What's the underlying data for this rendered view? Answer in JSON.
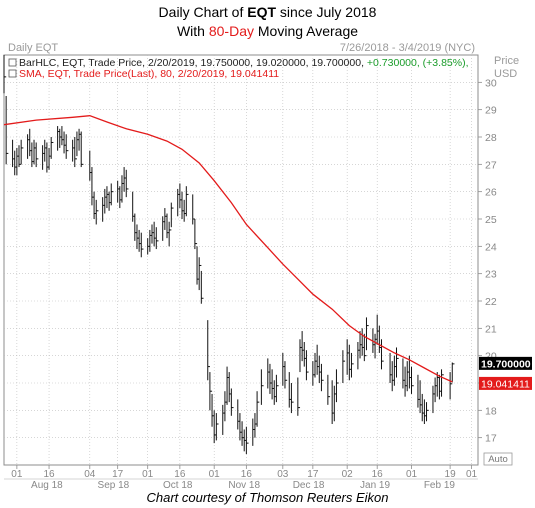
{
  "header": {
    "line1_prefix": "Daily Chart of ",
    "ticker": "EQT",
    "line1_suffix": " since July 2018",
    "line2_prefix": "With ",
    "line2_highlight": "80-Day",
    "line2_suffix": " Moving Average"
  },
  "panel": {
    "name": "Daily EQT",
    "range": "7/26/2018 - 3/4/2019 (NYC)",
    "price_label": "Price",
    "usd_label": "USD",
    "auto_label": "Auto",
    "legend_bar": "BarHLC, EQT, Trade Price, 2/20/2019, 19.750000, 19.020000, 19.700000, ",
    "legend_change": "+0.730000, (+3.85%),",
    "legend_sma": "SMA, EQT, Trade Price(Last), 80, 2/20/2019, 19.041411",
    "last_price_tag": "19.700000",
    "sma_tag": "19.041411"
  },
  "credit": "Chart courtesy of Thomson Reuters Eikon",
  "colors": {
    "bars": "#111111",
    "sma": "#e31b1b",
    "grid": "#bdbdbd",
    "axis_text": "#888888",
    "price_tag_bg": "#000000",
    "sma_tag_bg": "#e31b1b"
  },
  "chart_data": {
    "type": "ohlc",
    "title": "Daily Chart of EQT since July 2018",
    "ylim": [
      16,
      31
    ],
    "y_ticks": [
      17,
      18,
      19,
      20,
      21,
      22,
      23,
      24,
      25,
      26,
      27,
      28,
      29,
      30
    ],
    "x_day_ticks": [
      {
        "date": "2018-08-01",
        "label": "01"
      },
      {
        "date": "2018-08-16",
        "label": "16"
      },
      {
        "date": "2018-09-04",
        "label": "04"
      },
      {
        "date": "2018-09-17",
        "label": "17"
      },
      {
        "date": "2018-10-01",
        "label": "01"
      },
      {
        "date": "2018-10-16",
        "label": "16"
      },
      {
        "date": "2018-11-01",
        "label": "01"
      },
      {
        "date": "2018-11-16",
        "label": "16"
      },
      {
        "date": "2018-12-03",
        "label": "03"
      },
      {
        "date": "2018-12-17",
        "label": "17"
      },
      {
        "date": "2019-01-02",
        "label": "02"
      },
      {
        "date": "2019-01-16",
        "label": "16"
      },
      {
        "date": "2019-02-01",
        "label": "01"
      },
      {
        "date": "2019-02-19",
        "label": "19"
      },
      {
        "date": "2019-03-01",
        "label": "01"
      }
    ],
    "x_month_labels": [
      {
        "date": "2018-08-15",
        "label": "Aug 18"
      },
      {
        "date": "2018-09-15",
        "label": "Sep 18"
      },
      {
        "date": "2018-10-15",
        "label": "Oct 18"
      },
      {
        "date": "2018-11-15",
        "label": "Nov 18"
      },
      {
        "date": "2018-12-15",
        "label": "Dec 18"
      },
      {
        "date": "2019-01-15",
        "label": "Jan 19"
      },
      {
        "date": "2019-02-14",
        "label": "Feb 19"
      }
    ],
    "x_start": "2018-07-26",
    "x_end": "2019-03-04",
    "bars": [
      {
        "date": "2018-07-26",
        "h": 31.0,
        "l": 29.6,
        "c": 30.2
      },
      {
        "date": "2018-07-27",
        "h": 29.5,
        "l": 27.0,
        "c": 27.4
      },
      {
        "date": "2018-07-30",
        "h": 27.9,
        "l": 26.9,
        "c": 27.2
      },
      {
        "date": "2018-07-31",
        "h": 27.5,
        "l": 26.6,
        "c": 26.9
      },
      {
        "date": "2018-08-01",
        "h": 27.6,
        "l": 26.6,
        "c": 27.3
      },
      {
        "date": "2018-08-02",
        "h": 27.7,
        "l": 26.9,
        "c": 27.0
      },
      {
        "date": "2018-08-03",
        "h": 27.9,
        "l": 27.0,
        "c": 27.6
      },
      {
        "date": "2018-08-06",
        "h": 28.1,
        "l": 27.2,
        "c": 27.9
      },
      {
        "date": "2018-08-07",
        "h": 28.3,
        "l": 27.3,
        "c": 27.5
      },
      {
        "date": "2018-08-08",
        "h": 27.8,
        "l": 26.9,
        "c": 27.1
      },
      {
        "date": "2018-08-09",
        "h": 27.9,
        "l": 27.0,
        "c": 27.6
      },
      {
        "date": "2018-08-10",
        "h": 27.8,
        "l": 26.9,
        "c": 27.2
      },
      {
        "date": "2018-08-13",
        "h": 27.7,
        "l": 26.8,
        "c": 27.4
      },
      {
        "date": "2018-08-14",
        "h": 27.9,
        "l": 27.1,
        "c": 27.6
      },
      {
        "date": "2018-08-15",
        "h": 27.8,
        "l": 26.7,
        "c": 26.9
      },
      {
        "date": "2018-08-16",
        "h": 27.6,
        "l": 26.8,
        "c": 27.3
      },
      {
        "date": "2018-08-17",
        "h": 28.0,
        "l": 27.2,
        "c": 27.8
      },
      {
        "date": "2018-08-20",
        "h": 28.4,
        "l": 27.5,
        "c": 28.2
      },
      {
        "date": "2018-08-21",
        "h": 28.3,
        "l": 27.6,
        "c": 28.0
      },
      {
        "date": "2018-08-22",
        "h": 28.4,
        "l": 27.7,
        "c": 27.9
      },
      {
        "date": "2018-08-23",
        "h": 28.2,
        "l": 27.4,
        "c": 27.7
      },
      {
        "date": "2018-08-24",
        "h": 28.1,
        "l": 27.2,
        "c": 27.5
      },
      {
        "date": "2018-08-27",
        "h": 27.9,
        "l": 27.1,
        "c": 27.6
      },
      {
        "date": "2018-08-28",
        "h": 28.0,
        "l": 26.9,
        "c": 27.2
      },
      {
        "date": "2018-08-29",
        "h": 28.2,
        "l": 27.3,
        "c": 27.9
      },
      {
        "date": "2018-08-30",
        "h": 28.3,
        "l": 27.5,
        "c": 28.1
      },
      {
        "date": "2018-08-31",
        "h": 28.2,
        "l": 26.9,
        "c": 27.0
      },
      {
        "date": "2018-09-04",
        "h": 27.5,
        "l": 26.4,
        "c": 26.7
      },
      {
        "date": "2018-09-05",
        "h": 26.9,
        "l": 25.5,
        "c": 25.8
      },
      {
        "date": "2018-09-06",
        "h": 26.0,
        "l": 25.0,
        "c": 25.2
      },
      {
        "date": "2018-09-07",
        "h": 25.7,
        "l": 24.8,
        "c": 25.3
      },
      {
        "date": "2018-09-10",
        "h": 25.8,
        "l": 24.9,
        "c": 25.5
      },
      {
        "date": "2018-09-11",
        "h": 26.1,
        "l": 25.2,
        "c": 25.8
      },
      {
        "date": "2018-09-12",
        "h": 26.2,
        "l": 25.4,
        "c": 25.9
      },
      {
        "date": "2018-09-13",
        "h": 26.0,
        "l": 25.3,
        "c": 25.6
      },
      {
        "date": "2018-09-14",
        "h": 26.3,
        "l": 25.5,
        "c": 26.0
      },
      {
        "date": "2018-09-17",
        "h": 26.4,
        "l": 25.6,
        "c": 26.1
      },
      {
        "date": "2018-09-18",
        "h": 26.2,
        "l": 25.4,
        "c": 25.7
      },
      {
        "date": "2018-09-19",
        "h": 26.6,
        "l": 25.6,
        "c": 26.3
      },
      {
        "date": "2018-09-20",
        "h": 26.9,
        "l": 26.0,
        "c": 26.5
      },
      {
        "date": "2018-09-21",
        "h": 26.8,
        "l": 25.8,
        "c": 26.1
      },
      {
        "date": "2018-09-24",
        "h": 26.0,
        "l": 24.9,
        "c": 25.1
      },
      {
        "date": "2018-09-25",
        "h": 25.2,
        "l": 24.2,
        "c": 24.5
      },
      {
        "date": "2018-09-26",
        "h": 24.8,
        "l": 23.9,
        "c": 24.3
      },
      {
        "date": "2018-09-27",
        "h": 24.6,
        "l": 23.8,
        "c": 24.1
      },
      {
        "date": "2018-09-28",
        "h": 24.5,
        "l": 23.6,
        "c": 23.9
      },
      {
        "date": "2018-10-01",
        "h": 24.3,
        "l": 23.7,
        "c": 24.0
      },
      {
        "date": "2018-10-02",
        "h": 24.6,
        "l": 23.8,
        "c": 24.4
      },
      {
        "date": "2018-10-03",
        "h": 24.8,
        "l": 24.1,
        "c": 24.5
      },
      {
        "date": "2018-10-04",
        "h": 24.9,
        "l": 24.0,
        "c": 24.3
      },
      {
        "date": "2018-10-05",
        "h": 24.7,
        "l": 23.9,
        "c": 24.2
      },
      {
        "date": "2018-10-08",
        "h": 25.1,
        "l": 24.2,
        "c": 24.9
      },
      {
        "date": "2018-10-09",
        "h": 25.4,
        "l": 24.6,
        "c": 25.1
      },
      {
        "date": "2018-10-10",
        "h": 25.2,
        "l": 24.3,
        "c": 24.5
      },
      {
        "date": "2018-10-11",
        "h": 24.9,
        "l": 24.0,
        "c": 24.6
      },
      {
        "date": "2018-10-12",
        "h": 25.6,
        "l": 24.7,
        "c": 25.4
      },
      {
        "date": "2018-10-15",
        "h": 26.1,
        "l": 25.1,
        "c": 25.9
      },
      {
        "date": "2018-10-16",
        "h": 26.3,
        "l": 25.4,
        "c": 25.7
      },
      {
        "date": "2018-10-17",
        "h": 26.0,
        "l": 25.0,
        "c": 25.3
      },
      {
        "date": "2018-10-18",
        "h": 25.7,
        "l": 24.9,
        "c": 25.2
      },
      {
        "date": "2018-10-19",
        "h": 26.2,
        "l": 25.1,
        "c": 25.9
      },
      {
        "date": "2018-10-22",
        "h": 25.9,
        "l": 24.8,
        "c": 25.0
      },
      {
        "date": "2018-10-23",
        "h": 25.0,
        "l": 23.9,
        "c": 24.1
      },
      {
        "date": "2018-10-24",
        "h": 24.0,
        "l": 22.6,
        "c": 22.8
      },
      {
        "date": "2018-10-25",
        "h": 23.6,
        "l": 22.4,
        "c": 23.3
      },
      {
        "date": "2018-10-26",
        "h": 23.1,
        "l": 21.9,
        "c": 22.1
      },
      {
        "date": "2018-10-29",
        "h": 21.3,
        "l": 19.1,
        "c": 19.6
      },
      {
        "date": "2018-10-30",
        "h": 19.4,
        "l": 18.0,
        "c": 18.7
      },
      {
        "date": "2018-10-31",
        "h": 18.6,
        "l": 17.4,
        "c": 17.8
      },
      {
        "date": "2018-11-01",
        "h": 18.0,
        "l": 16.8,
        "c": 17.1
      },
      {
        "date": "2018-11-02",
        "h": 17.9,
        "l": 16.9,
        "c": 17.5
      },
      {
        "date": "2018-11-05",
        "h": 18.2,
        "l": 17.1,
        "c": 17.9
      },
      {
        "date": "2018-11-06",
        "h": 18.7,
        "l": 17.6,
        "c": 18.3
      },
      {
        "date": "2018-11-07",
        "h": 19.6,
        "l": 18.2,
        "c": 19.2
      },
      {
        "date": "2018-11-08",
        "h": 19.4,
        "l": 18.3,
        "c": 18.6
      },
      {
        "date": "2018-11-09",
        "h": 18.8,
        "l": 17.8,
        "c": 18.1
      },
      {
        "date": "2018-11-12",
        "h": 18.4,
        "l": 17.3,
        "c": 17.6
      },
      {
        "date": "2018-11-13",
        "h": 17.9,
        "l": 16.9,
        "c": 17.2
      },
      {
        "date": "2018-11-14",
        "h": 17.6,
        "l": 16.7,
        "c": 17.0
      },
      {
        "date": "2018-11-15",
        "h": 17.3,
        "l": 16.5,
        "c": 16.9
      },
      {
        "date": "2018-11-16",
        "h": 17.4,
        "l": 16.4,
        "c": 16.8
      },
      {
        "date": "2018-11-19",
        "h": 17.7,
        "l": 16.7,
        "c": 17.3
      },
      {
        "date": "2018-11-20",
        "h": 17.9,
        "l": 17.0,
        "c": 17.5
      },
      {
        "date": "2018-11-21",
        "h": 18.7,
        "l": 17.4,
        "c": 18.3
      },
      {
        "date": "2018-11-23",
        "h": 19.5,
        "l": 18.2,
        "c": 18.9
      },
      {
        "date": "2018-11-26",
        "h": 19.9,
        "l": 18.8,
        "c": 19.4
      },
      {
        "date": "2018-11-27",
        "h": 19.7,
        "l": 18.6,
        "c": 19.0
      },
      {
        "date": "2018-11-28",
        "h": 19.5,
        "l": 18.4,
        "c": 18.8
      },
      {
        "date": "2018-11-29",
        "h": 19.1,
        "l": 18.2,
        "c": 18.5
      },
      {
        "date": "2018-11-30",
        "h": 19.3,
        "l": 18.3,
        "c": 18.9
      },
      {
        "date": "2018-12-03",
        "h": 20.1,
        "l": 18.9,
        "c": 19.6
      },
      {
        "date": "2018-12-04",
        "h": 19.8,
        "l": 18.8,
        "c": 19.1
      },
      {
        "date": "2018-12-06",
        "h": 19.4,
        "l": 18.1,
        "c": 18.4
      },
      {
        "date": "2018-12-07",
        "h": 19.0,
        "l": 17.9,
        "c": 18.3
      },
      {
        "date": "2018-12-10",
        "h": 19.2,
        "l": 17.8,
        "c": 18.1
      },
      {
        "date": "2018-12-11",
        "h": 20.6,
        "l": 19.4,
        "c": 20.3
      },
      {
        "date": "2018-12-12",
        "h": 20.9,
        "l": 19.8,
        "c": 20.2
      },
      {
        "date": "2018-12-13",
        "h": 20.5,
        "l": 19.6,
        "c": 19.9
      },
      {
        "date": "2018-12-14",
        "h": 20.2,
        "l": 19.1,
        "c": 19.4
      },
      {
        "date": "2018-12-17",
        "h": 19.8,
        "l": 18.9,
        "c": 19.3
      },
      {
        "date": "2018-12-18",
        "h": 20.1,
        "l": 19.2,
        "c": 19.8
      },
      {
        "date": "2018-12-19",
        "h": 20.4,
        "l": 19.3,
        "c": 19.6
      },
      {
        "date": "2018-12-20",
        "h": 20.0,
        "l": 19.0,
        "c": 19.4
      },
      {
        "date": "2018-12-21",
        "h": 19.7,
        "l": 18.7,
        "c": 19.1
      },
      {
        "date": "2018-12-24",
        "h": 19.3,
        "l": 18.2,
        "c": 18.5
      },
      {
        "date": "2018-12-26",
        "h": 19.1,
        "l": 17.5,
        "c": 17.9
      },
      {
        "date": "2018-12-27",
        "h": 18.9,
        "l": 17.6,
        "c": 18.6
      },
      {
        "date": "2018-12-28",
        "h": 19.5,
        "l": 18.3,
        "c": 19.0
      },
      {
        "date": "2018-12-31",
        "h": 20.2,
        "l": 19.0,
        "c": 19.8
      },
      {
        "date": "2019-01-02",
        "h": 20.6,
        "l": 19.3,
        "c": 20.1
      },
      {
        "date": "2019-01-03",
        "h": 20.4,
        "l": 19.1,
        "c": 19.5
      },
      {
        "date": "2019-01-04",
        "h": 20.1,
        "l": 19.2,
        "c": 19.7
      },
      {
        "date": "2019-01-07",
        "h": 20.5,
        "l": 19.5,
        "c": 20.2
      },
      {
        "date": "2019-01-08",
        "h": 20.9,
        "l": 19.9,
        "c": 20.4
      },
      {
        "date": "2019-01-09",
        "h": 21.0,
        "l": 20.0,
        "c": 20.3
      },
      {
        "date": "2019-01-10",
        "h": 20.8,
        "l": 19.8,
        "c": 20.0
      },
      {
        "date": "2019-01-11",
        "h": 21.4,
        "l": 20.2,
        "c": 21.1
      },
      {
        "date": "2019-01-14",
        "h": 21.0,
        "l": 20.1,
        "c": 20.4
      },
      {
        "date": "2019-01-15",
        "h": 20.8,
        "l": 19.9,
        "c": 20.6
      },
      {
        "date": "2019-01-16",
        "h": 21.5,
        "l": 20.4,
        "c": 20.9
      },
      {
        "date": "2019-01-17",
        "h": 21.1,
        "l": 20.1,
        "c": 20.3
      },
      {
        "date": "2019-01-18",
        "h": 20.6,
        "l": 19.5,
        "c": 19.8
      },
      {
        "date": "2019-01-22",
        "h": 20.1,
        "l": 19.0,
        "c": 19.3
      },
      {
        "date": "2019-01-23",
        "h": 19.8,
        "l": 18.7,
        "c": 19.1
      },
      {
        "date": "2019-01-24",
        "h": 20.0,
        "l": 18.9,
        "c": 19.6
      },
      {
        "date": "2019-01-25",
        "h": 20.3,
        "l": 19.2,
        "c": 19.9
      },
      {
        "date": "2019-01-28",
        "h": 19.9,
        "l": 18.8,
        "c": 19.1
      },
      {
        "date": "2019-01-29",
        "h": 19.6,
        "l": 18.5,
        "c": 18.9
      },
      {
        "date": "2019-01-30",
        "h": 19.8,
        "l": 18.7,
        "c": 19.4
      },
      {
        "date": "2019-01-31",
        "h": 20.0,
        "l": 18.8,
        "c": 19.2
      },
      {
        "date": "2019-02-01",
        "h": 19.6,
        "l": 18.6,
        "c": 18.9
      },
      {
        "date": "2019-02-04",
        "h": 19.3,
        "l": 18.1,
        "c": 18.4
      },
      {
        "date": "2019-02-05",
        "h": 19.1,
        "l": 17.9,
        "c": 18.2
      },
      {
        "date": "2019-02-06",
        "h": 18.6,
        "l": 17.6,
        "c": 17.9
      },
      {
        "date": "2019-02-07",
        "h": 18.4,
        "l": 17.5,
        "c": 17.8
      },
      {
        "date": "2019-02-08",
        "h": 18.3,
        "l": 17.6,
        "c": 18.0
      },
      {
        "date": "2019-02-11",
        "h": 18.9,
        "l": 17.9,
        "c": 18.6
      },
      {
        "date": "2019-02-12",
        "h": 19.2,
        "l": 18.3,
        "c": 18.9
      },
      {
        "date": "2019-02-13",
        "h": 19.4,
        "l": 18.5,
        "c": 19.2
      },
      {
        "date": "2019-02-14",
        "h": 19.3,
        "l": 18.4,
        "c": 18.7
      },
      {
        "date": "2019-02-15",
        "h": 19.5,
        "l": 18.5,
        "c": 19.3
      },
      {
        "date": "2019-02-19",
        "h": 19.4,
        "l": 18.4,
        "c": 18.97
      },
      {
        "date": "2019-02-20",
        "h": 19.75,
        "l": 19.02,
        "c": 19.7
      }
    ],
    "sma": [
      {
        "date": "2018-07-26",
        "v": 28.45
      },
      {
        "date": "2018-08-10",
        "v": 28.62
      },
      {
        "date": "2018-08-27",
        "v": 28.72
      },
      {
        "date": "2018-09-04",
        "v": 28.78
      },
      {
        "date": "2018-09-12",
        "v": 28.55
      },
      {
        "date": "2018-09-21",
        "v": 28.3
      },
      {
        "date": "2018-10-01",
        "v": 28.1
      },
      {
        "date": "2018-10-10",
        "v": 27.85
      },
      {
        "date": "2018-10-17",
        "v": 27.55
      },
      {
        "date": "2018-10-25",
        "v": 27.05
      },
      {
        "date": "2018-11-01",
        "v": 26.4
      },
      {
        "date": "2018-11-09",
        "v": 25.6
      },
      {
        "date": "2018-11-16",
        "v": 24.8
      },
      {
        "date": "2018-11-26",
        "v": 23.95
      },
      {
        "date": "2018-12-03",
        "v": 23.35
      },
      {
        "date": "2018-12-10",
        "v": 22.8
      },
      {
        "date": "2018-12-17",
        "v": 22.25
      },
      {
        "date": "2018-12-26",
        "v": 21.7
      },
      {
        "date": "2019-01-03",
        "v": 21.1
      },
      {
        "date": "2019-01-10",
        "v": 20.7
      },
      {
        "date": "2019-01-17",
        "v": 20.4
      },
      {
        "date": "2019-01-24",
        "v": 20.1
      },
      {
        "date": "2019-01-31",
        "v": 19.85
      },
      {
        "date": "2019-02-07",
        "v": 19.55
      },
      {
        "date": "2019-02-14",
        "v": 19.25
      },
      {
        "date": "2019-02-20",
        "v": 19.04
      }
    ]
  }
}
